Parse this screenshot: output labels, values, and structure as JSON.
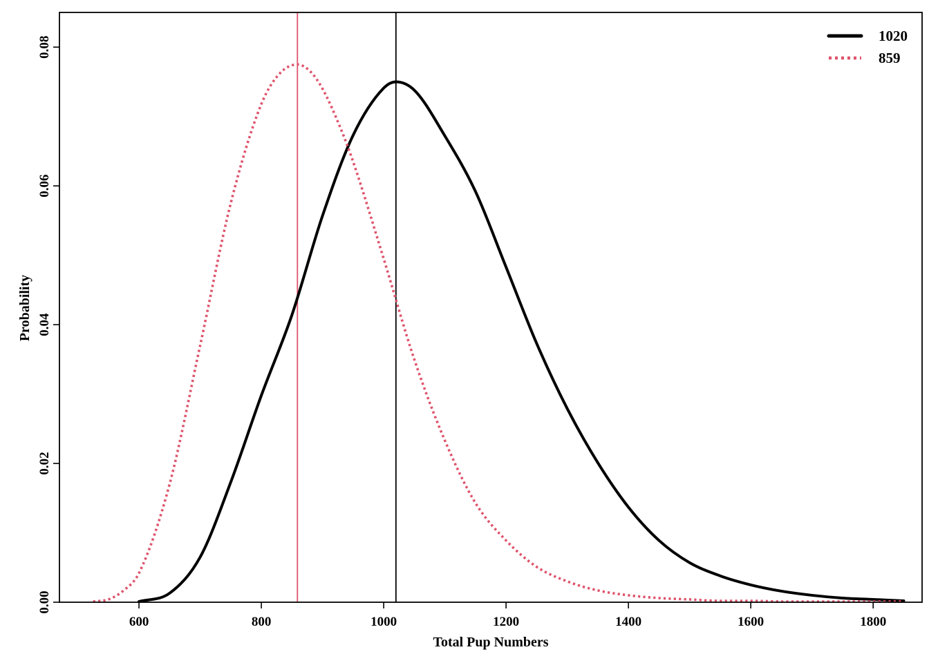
{
  "chart_data": {
    "type": "line",
    "title": "",
    "xlabel": "Total Pup Numbers",
    "ylabel": "Probability",
    "xlim": [
      470,
      1880
    ],
    "ylim": [
      0,
      0.085
    ],
    "x_ticks": [
      600,
      800,
      1000,
      1200,
      1400,
      1600,
      1800
    ],
    "y_ticks": [
      0.0,
      0.02,
      0.04,
      0.06,
      0.08
    ],
    "x_tick_labels": [
      "600",
      "800",
      "1000",
      "1200",
      "1400",
      "1600",
      "1800"
    ],
    "y_tick_labels": [
      "0.00",
      "0.02",
      "0.04",
      "0.06",
      "0.08"
    ],
    "grid": false,
    "legend_position": "top-right",
    "series": [
      {
        "name": "1020",
        "color": "#000000",
        "line_style": "solid",
        "x": [
          600,
          650,
          700,
          750,
          800,
          850,
          900,
          950,
          1000,
          1020,
          1050,
          1100,
          1150,
          1200,
          1250,
          1300,
          1350,
          1400,
          1450,
          1500,
          1550,
          1600,
          1650,
          1700,
          1750,
          1800,
          1850
        ],
        "y": [
          0.0001,
          0.0013,
          0.0065,
          0.0173,
          0.0298,
          0.0414,
          0.0557,
          0.0673,
          0.0741,
          0.075,
          0.0738,
          0.0672,
          0.0592,
          0.0483,
          0.0373,
          0.0279,
          0.0201,
          0.0137,
          0.0089,
          0.0057,
          0.0038,
          0.0025,
          0.0016,
          0.001,
          0.0006,
          0.0004,
          0.0002
        ]
      },
      {
        "name": "859",
        "color": "#DF536B",
        "line_style": "dotted",
        "x": [
          525,
          550,
          575,
          600,
          650,
          700,
          750,
          800,
          830,
          859,
          880,
          900,
          930,
          950,
          1000,
          1050,
          1100,
          1150,
          1200,
          1250,
          1300,
          1350,
          1400,
          1450,
          1500,
          1550,
          1600,
          1650,
          1700,
          1750,
          1800,
          1850
        ],
        "y": [
          0.0001,
          0.0004,
          0.0017,
          0.0042,
          0.017,
          0.037,
          0.0575,
          0.0718,
          0.0762,
          0.0775,
          0.0765,
          0.074,
          0.0682,
          0.0635,
          0.0495,
          0.035,
          0.0233,
          0.0143,
          0.0089,
          0.0051,
          0.003,
          0.0017,
          0.001,
          0.0006,
          0.0004,
          0.0002,
          0.0002,
          0.0001,
          0.0001,
          0.0001,
          0.0001,
          0.0001
        ]
      }
    ],
    "vertical_lines": [
      {
        "x": 1020,
        "color": "#000000"
      },
      {
        "x": 859,
        "color": "#DF536B"
      }
    ]
  }
}
